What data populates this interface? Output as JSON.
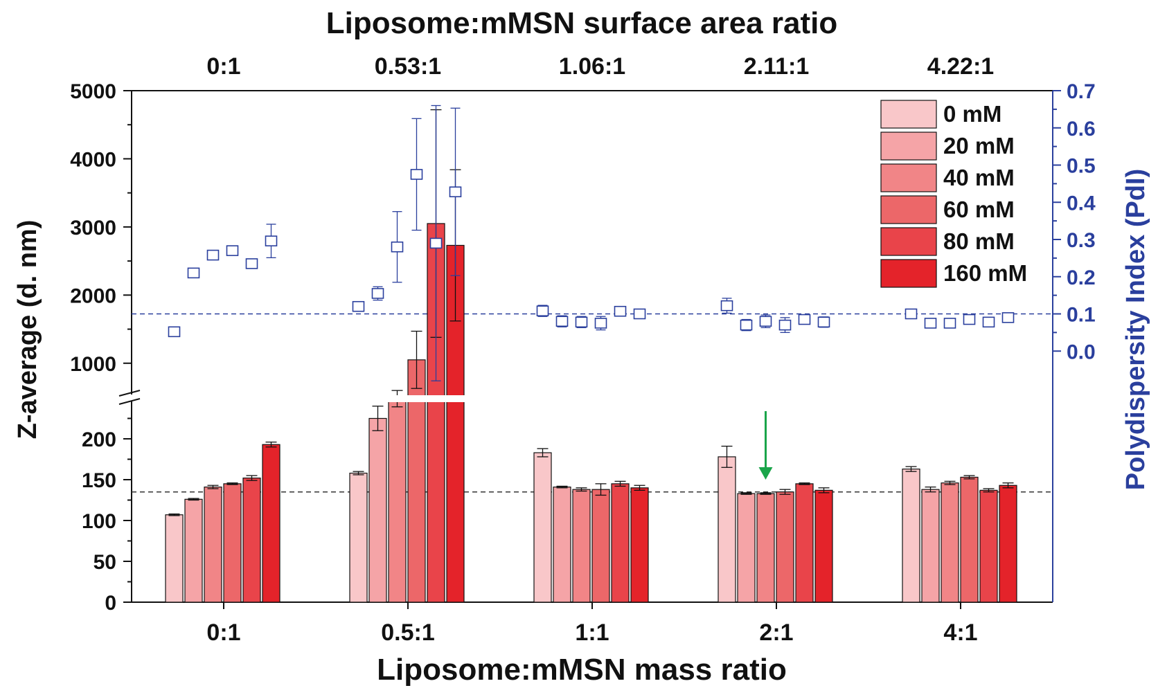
{
  "chart_data": {
    "type": "bar",
    "title_top": "Liposome:mMSN surface area ratio",
    "top_categories": [
      "0:1",
      "0.53:1",
      "1.06:1",
      "2.11:1",
      "4.22:1"
    ],
    "xlabel": "Liposome:mMSN mass ratio",
    "categories": [
      "0:1",
      "0.5:1",
      "1:1",
      "2:1",
      "4:1"
    ],
    "ylabel": "Z-average (d. nm)",
    "y2label": "Polydispersity Index (PdI)",
    "y_lower_ticks": [
      "0",
      "50",
      "100",
      "150",
      "200"
    ],
    "y_upper_ticks": [
      "1000",
      "2000",
      "3000",
      "4000",
      "5000"
    ],
    "y2_ticks": [
      "0.0",
      "0.1",
      "0.2",
      "0.3",
      "0.4",
      "0.5",
      "0.6",
      "0.7"
    ],
    "y_axis_break": [
      250,
      500
    ],
    "ylim": [
      0,
      5000
    ],
    "y2lim": [
      -0.1,
      0.7
    ],
    "series": [
      {
        "name": "0 mM",
        "color": "#f9c7c9",
        "values": [
          107,
          158,
          183,
          178,
          163
        ],
        "errors": [
          1,
          2,
          5,
          13,
          3
        ]
      },
      {
        "name": "20 mM",
        "color": "#f5a4a7",
        "values": [
          126,
          225,
          141,
          133,
          138
        ],
        "errors": [
          1,
          15,
          1,
          1,
          3
        ]
      },
      {
        "name": "40 mM",
        "color": "#f18587",
        "values": [
          141,
          480,
          138,
          133,
          146
        ],
        "errors": [
          2,
          120,
          2,
          1,
          2
        ]
      },
      {
        "name": "60 mM",
        "color": "#ec6769",
        "values": [
          145,
          1050,
          138,
          135,
          153
        ],
        "errors": [
          1,
          420,
          7,
          3,
          2
        ]
      },
      {
        "name": "80 mM",
        "color": "#e9444a",
        "values": [
          152,
          3050,
          145,
          145,
          137
        ],
        "errors": [
          3,
          1670,
          3,
          1,
          2
        ]
      },
      {
        "name": "160 mM",
        "color": "#e4232a",
        "values": [
          193,
          2730,
          140,
          137,
          143
        ],
        "errors": [
          3,
          1110,
          3,
          3,
          3
        ]
      }
    ],
    "pdi": {
      "color": "#2a3f9d",
      "values": [
        [
          0.052,
          0.21,
          0.258,
          0.27,
          0.235,
          0.296
        ],
        [
          0.12,
          0.155,
          0.28,
          0.475,
          0.29,
          0.428
        ],
        [
          0.108,
          0.08,
          0.078,
          0.075,
          0.107,
          0.1
        ],
        [
          0.122,
          0.07,
          0.08,
          0.07,
          0.085,
          0.078
        ],
        [
          0.1,
          0.075,
          0.075,
          0.085,
          0.078,
          0.09
        ]
      ],
      "errors": [
        [
          0.01,
          0.006,
          0.008,
          0.01,
          0.007,
          0.045
        ],
        [
          0.012,
          0.018,
          0.095,
          0.15,
          0.37,
          0.225
        ],
        [
          0.015,
          0.015,
          0.015,
          0.018,
          0.006,
          0.006
        ],
        [
          0.02,
          0.015,
          0.017,
          0.02,
          0.006,
          0.014
        ],
        [
          0.01,
          0.006,
          0.01,
          0.01,
          0.01,
          0.012
        ]
      ]
    },
    "reference_lines": {
      "z_average": 135,
      "pdi": 0.1
    },
    "annotation": {
      "type": "arrow",
      "color": "#1aa54a",
      "category_index": 3,
      "series_index": 2
    }
  }
}
